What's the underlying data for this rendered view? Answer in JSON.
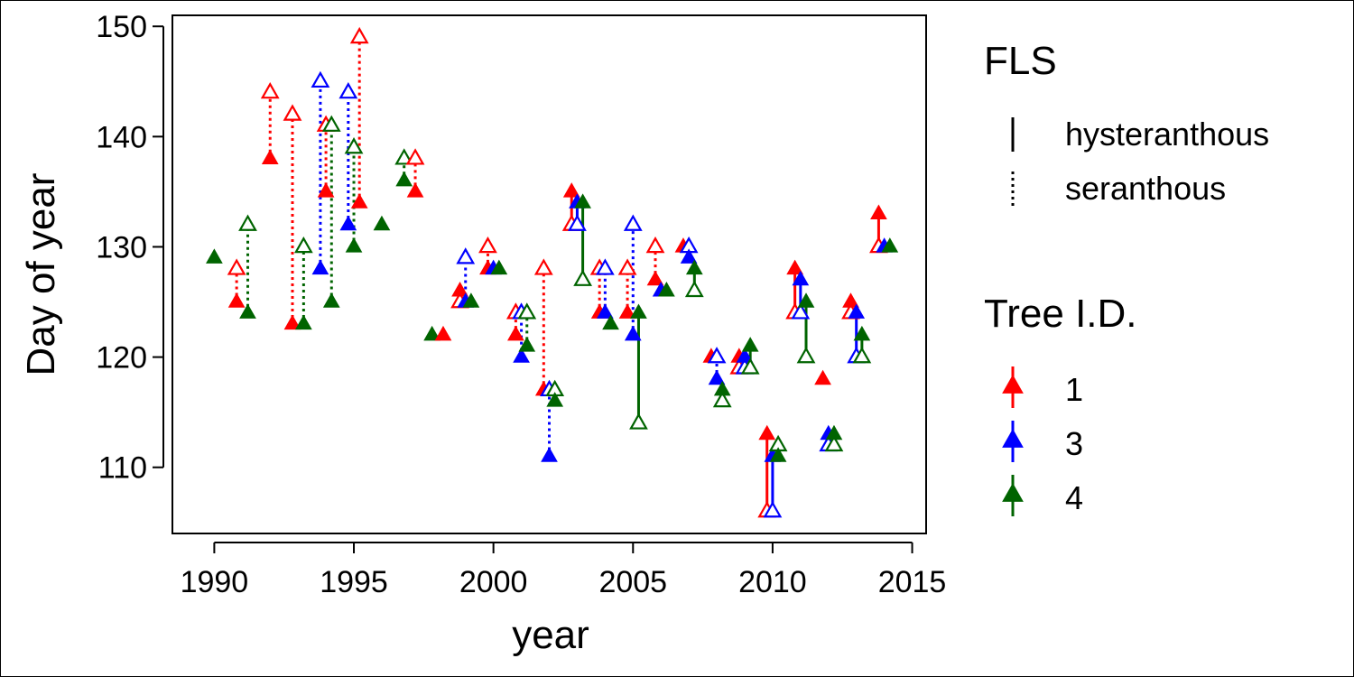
{
  "chart_data": {
    "type": "scatter",
    "title": "",
    "xlabel": "year",
    "ylabel": "Day of year",
    "xlim": [
      1988.5,
      2015.5
    ],
    "ylim": [
      104,
      151
    ],
    "xticks": [
      1990,
      1995,
      2000,
      2005,
      2010,
      2015
    ],
    "yticks": [
      110,
      120,
      130,
      140,
      150
    ],
    "grid": false,
    "legend_position": "right",
    "colors": {
      "1": "#ff0000",
      "3": "#0000ff",
      "4": "#006400"
    },
    "marker_note": "filled triangle = first value (flowering); open triangle = second value (leafing)",
    "legend": {
      "fls_title": "FLS",
      "fls_items": [
        {
          "label": "hysteranthous",
          "style": "solid"
        },
        {
          "label": "seranthous",
          "style": "dotted"
        }
      ],
      "tree_title": "Tree I.D.",
      "tree_items": [
        {
          "label": "1",
          "tree": "1"
        },
        {
          "label": "3",
          "tree": "3"
        },
        {
          "label": "4",
          "tree": "4"
        }
      ]
    },
    "series": [
      {
        "tree": "4",
        "x": 1990.0,
        "filled": 129,
        "open": null,
        "fls": "none"
      },
      {
        "tree": "1",
        "x": 1990.8,
        "filled": 125,
        "open": 128,
        "fls": "seranthous"
      },
      {
        "tree": "4",
        "x": 1991.2,
        "filled": 124,
        "open": 132,
        "fls": "seranthous"
      },
      {
        "tree": "1",
        "x": 1992.0,
        "filled": 138,
        "open": 144,
        "fls": "seranthous"
      },
      {
        "tree": "1",
        "x": 1992.8,
        "filled": 123,
        "open": 142,
        "fls": "seranthous"
      },
      {
        "tree": "4",
        "x": 1993.2,
        "filled": 123,
        "open": 130,
        "fls": "seranthous"
      },
      {
        "tree": "3",
        "x": 1993.8,
        "filled": 128,
        "open": 145,
        "fls": "seranthous"
      },
      {
        "tree": "1",
        "x": 1994.0,
        "filled": 135,
        "open": 141,
        "fls": "seranthous"
      },
      {
        "tree": "4",
        "x": 1994.2,
        "filled": 125,
        "open": 141,
        "fls": "seranthous"
      },
      {
        "tree": "3",
        "x": 1994.8,
        "filled": 132,
        "open": 144,
        "fls": "seranthous"
      },
      {
        "tree": "4",
        "x": 1995.0,
        "filled": 130,
        "open": 139,
        "fls": "seranthous"
      },
      {
        "tree": "1",
        "x": 1995.2,
        "filled": 134,
        "open": 149,
        "fls": "seranthous"
      },
      {
        "tree": "4",
        "x": 1996.0,
        "filled": 132,
        "open": null,
        "fls": "none"
      },
      {
        "tree": "4",
        "x": 1996.8,
        "filled": 136,
        "open": 138,
        "fls": "seranthous"
      },
      {
        "tree": "1",
        "x": 1997.2,
        "filled": 135,
        "open": 138,
        "fls": "seranthous"
      },
      {
        "tree": "4",
        "x": 1997.8,
        "filled": 122,
        "open": null,
        "fls": "none"
      },
      {
        "tree": "1",
        "x": 1998.2,
        "filled": 122,
        "open": null,
        "fls": "none"
      },
      {
        "tree": "1",
        "x": 1998.8,
        "filled": 126,
        "open": 125,
        "fls": "seranthous"
      },
      {
        "tree": "3",
        "x": 1999.0,
        "filled": 125,
        "open": 129,
        "fls": "seranthous"
      },
      {
        "tree": "4",
        "x": 1999.2,
        "filled": 125,
        "open": null,
        "fls": "none"
      },
      {
        "tree": "1",
        "x": 1999.8,
        "filled": 128,
        "open": 130,
        "fls": "seranthous"
      },
      {
        "tree": "3",
        "x": 2000.0,
        "filled": 128,
        "open": null,
        "fls": "none"
      },
      {
        "tree": "4",
        "x": 2000.2,
        "filled": 128,
        "open": null,
        "fls": "none"
      },
      {
        "tree": "1",
        "x": 2000.8,
        "filled": 122,
        "open": 124,
        "fls": "seranthous"
      },
      {
        "tree": "3",
        "x": 2001.0,
        "filled": 120,
        "open": 124,
        "fls": "seranthous"
      },
      {
        "tree": "4",
        "x": 2001.2,
        "filled": 121,
        "open": 124,
        "fls": "seranthous"
      },
      {
        "tree": "1",
        "x": 2001.8,
        "filled": 117,
        "open": 128,
        "fls": "seranthous"
      },
      {
        "tree": "3",
        "x": 2002.0,
        "filled": 111,
        "open": 117,
        "fls": "seranthous"
      },
      {
        "tree": "4",
        "x": 2002.2,
        "filled": 116,
        "open": 117,
        "fls": "seranthous"
      },
      {
        "tree": "1",
        "x": 2002.8,
        "filled": 135,
        "open": 132,
        "fls": "hysteranthous"
      },
      {
        "tree": "3",
        "x": 2003.0,
        "filled": 134,
        "open": 132,
        "fls": "hysteranthous"
      },
      {
        "tree": "4",
        "x": 2003.2,
        "filled": 134,
        "open": 127,
        "fls": "hysteranthous"
      },
      {
        "tree": "1",
        "x": 2003.8,
        "filled": 124,
        "open": 128,
        "fls": "seranthous"
      },
      {
        "tree": "3",
        "x": 2004.0,
        "filled": 124,
        "open": 128,
        "fls": "seranthous"
      },
      {
        "tree": "4",
        "x": 2004.2,
        "filled": 123,
        "open": null,
        "fls": "none"
      },
      {
        "tree": "1",
        "x": 2004.8,
        "filled": 124,
        "open": 128,
        "fls": "seranthous"
      },
      {
        "tree": "3",
        "x": 2005.0,
        "filled": 122,
        "open": 132,
        "fls": "seranthous"
      },
      {
        "tree": "4",
        "x": 2005.2,
        "filled": 124,
        "open": 114,
        "fls": "hysteranthous"
      },
      {
        "tree": "1",
        "x": 2005.8,
        "filled": 127,
        "open": 130,
        "fls": "seranthous"
      },
      {
        "tree": "3",
        "x": 2006.0,
        "filled": 126,
        "open": null,
        "fls": "none"
      },
      {
        "tree": "4",
        "x": 2006.2,
        "filled": 126,
        "open": null,
        "fls": "none"
      },
      {
        "tree": "1",
        "x": 2006.8,
        "filled": 130,
        "open": null,
        "fls": "none"
      },
      {
        "tree": "3",
        "x": 2007.0,
        "filled": 129,
        "open": 130,
        "fls": "seranthous"
      },
      {
        "tree": "4",
        "x": 2007.2,
        "filled": 128,
        "open": 126,
        "fls": "hysteranthous"
      },
      {
        "tree": "1",
        "x": 2007.8,
        "filled": 120,
        "open": null,
        "fls": "none"
      },
      {
        "tree": "3",
        "x": 2008.0,
        "filled": 118,
        "open": 120,
        "fls": "seranthous"
      },
      {
        "tree": "4",
        "x": 2008.2,
        "filled": 117,
        "open": 116,
        "fls": "hysteranthous"
      },
      {
        "tree": "1",
        "x": 2008.8,
        "filled": 120,
        "open": 119,
        "fls": "hysteranthous"
      },
      {
        "tree": "3",
        "x": 2009.0,
        "filled": 120,
        "open": 119,
        "fls": "hysteranthous"
      },
      {
        "tree": "4",
        "x": 2009.2,
        "filled": 121,
        "open": 119,
        "fls": "hysteranthous"
      },
      {
        "tree": "1",
        "x": 2009.8,
        "filled": 113,
        "open": 106,
        "fls": "hysteranthous"
      },
      {
        "tree": "3",
        "x": 2010.0,
        "filled": 111,
        "open": 106,
        "fls": "hysteranthous"
      },
      {
        "tree": "4",
        "x": 2010.2,
        "filled": 111,
        "open": 112,
        "fls": "seranthous"
      },
      {
        "tree": "1",
        "x": 2010.8,
        "filled": 128,
        "open": 124,
        "fls": "hysteranthous"
      },
      {
        "tree": "3",
        "x": 2011.0,
        "filled": 127,
        "open": 124,
        "fls": "hysteranthous"
      },
      {
        "tree": "4",
        "x": 2011.2,
        "filled": 125,
        "open": 120,
        "fls": "hysteranthous"
      },
      {
        "tree": "1",
        "x": 2011.8,
        "filled": 118,
        "open": null,
        "fls": "none"
      },
      {
        "tree": "3",
        "x": 2012.0,
        "filled": 113,
        "open": 112,
        "fls": "hysteranthous"
      },
      {
        "tree": "4",
        "x": 2012.2,
        "filled": 113,
        "open": 112,
        "fls": "hysteranthous"
      },
      {
        "tree": "1",
        "x": 2012.8,
        "filled": 125,
        "open": 124,
        "fls": "hysteranthous"
      },
      {
        "tree": "3",
        "x": 2013.0,
        "filled": 124,
        "open": 120,
        "fls": "hysteranthous"
      },
      {
        "tree": "4",
        "x": 2013.2,
        "filled": 122,
        "open": 120,
        "fls": "hysteranthous"
      },
      {
        "tree": "1",
        "x": 2013.8,
        "filled": 133,
        "open": 130,
        "fls": "hysteranthous"
      },
      {
        "tree": "3",
        "x": 2014.0,
        "filled": 130,
        "open": null,
        "fls": "none"
      },
      {
        "tree": "4",
        "x": 2014.2,
        "filled": 130,
        "open": null,
        "fls": "none"
      }
    ]
  }
}
